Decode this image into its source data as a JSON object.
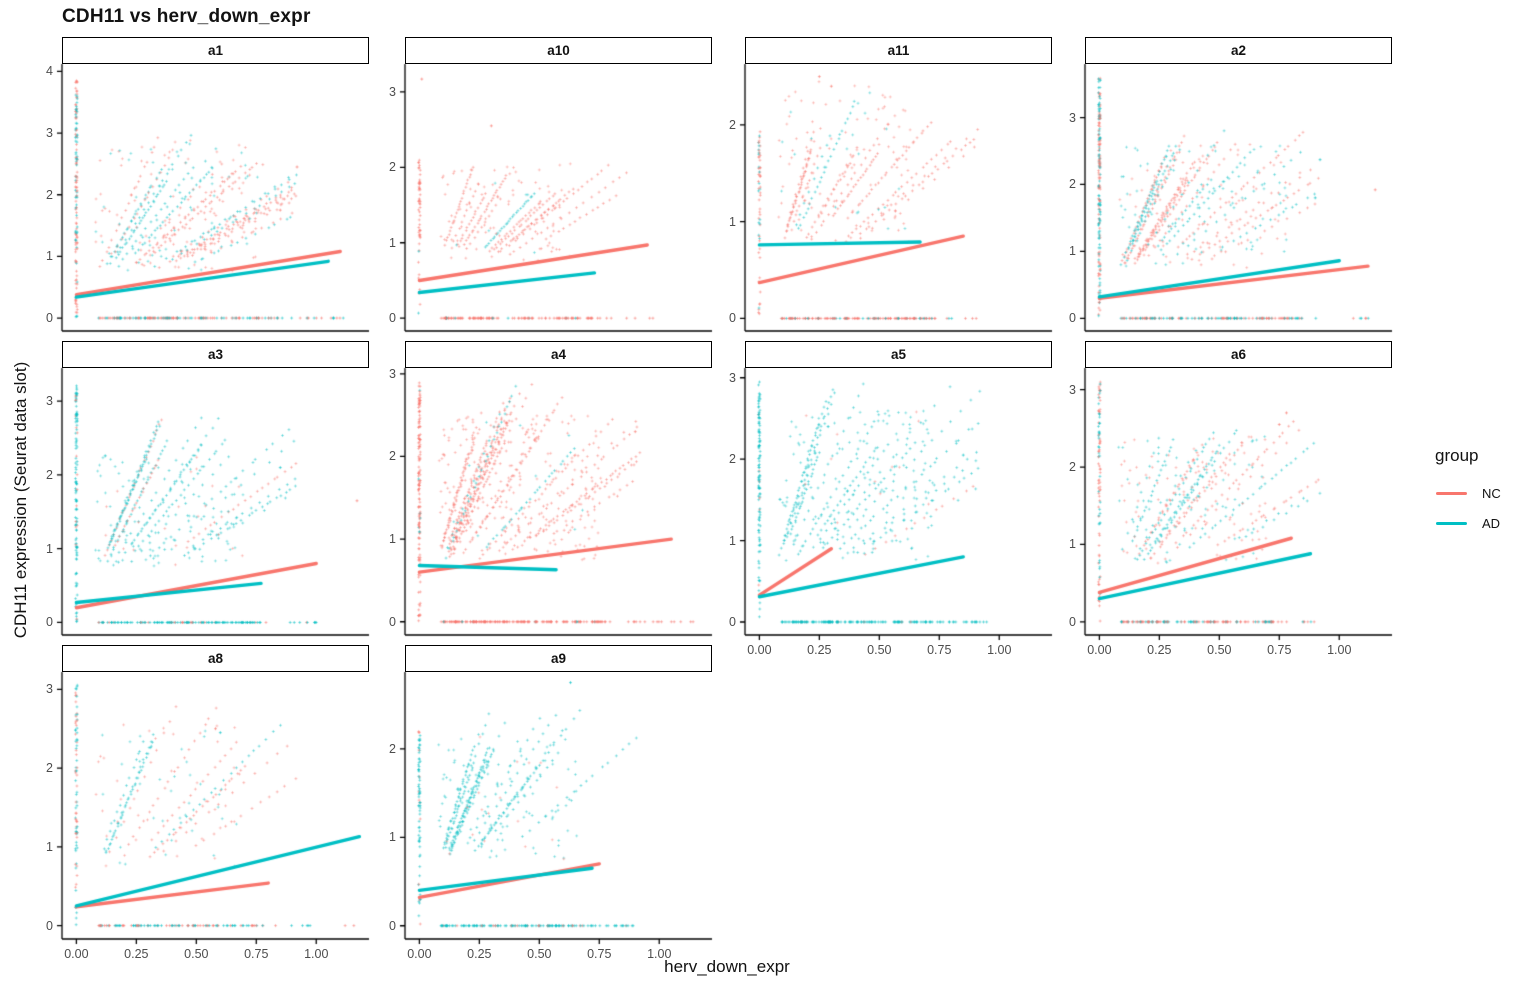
{
  "chart_data": {
    "type": "scatter",
    "title": "CDH11 vs herv_down_expr",
    "xlabel": "herv_down_expr",
    "ylabel": "CDH11 expression (Seurat data slot)",
    "legend_position": "right",
    "grid": false,
    "xlim": [
      -0.06,
      1.22
    ],
    "x_ticks": [
      0,
      0.25,
      0.5,
      0.75,
      1.0
    ],
    "x_tick_labels": [
      "0.00",
      "0.25",
      "0.50",
      "0.75",
      "1.00"
    ],
    "groups": [
      {
        "name": "NC",
        "color": "#F8766D"
      },
      {
        "name": "AD",
        "color": "#00BFC4"
      }
    ],
    "facets": [
      {
        "label": "a1",
        "row": 0,
        "col": 0,
        "y_ticks": [
          0,
          1,
          2,
          3,
          4
        ],
        "ylim": [
          -0.21,
          4.12
        ],
        "lines": {
          "NC": [
            0,
            0.38,
            1.1,
            1.08
          ],
          "AD": [
            0,
            0.34,
            1.05,
            0.92
          ]
        },
        "cloud": {
          "frac_nc": 0.62,
          "strip": 150,
          "zero": 160,
          "streaks": 26,
          "diffuse": 150,
          "strip_max": 3.85,
          "streak_max": 2.95,
          "diff_max": 2.9,
          "diff_x": 0.68,
          "zero_x": 0.85,
          "zero_far": 1.12
        },
        "extra": [
          [
            0.92,
            2.45,
            "NC"
          ],
          [
            0.85,
            1.75,
            "NC"
          ]
        ]
      },
      {
        "label": "a10",
        "row": 0,
        "col": 1,
        "y_ticks": [
          0,
          1,
          2,
          3
        ],
        "ylim": [
          -0.17,
          3.37
        ],
        "lines": {
          "NC": [
            0,
            0.5,
            0.95,
            0.97
          ],
          "AD": [
            0,
            0.34,
            0.73,
            0.6
          ]
        },
        "cloud": {
          "frac_nc": 0.93,
          "strip": 55,
          "zero": 120,
          "streaks": 13,
          "diffuse": 90,
          "strip_max": 2.1,
          "streak_max": 2.0,
          "diff_max": 2.05,
          "diff_x": 0.55,
          "zero_x": 0.72,
          "zero_far": 1.0
        },
        "extra": [
          [
            0.01,
            3.17,
            "NC"
          ],
          [
            0.3,
            2.55,
            "NC"
          ]
        ]
      },
      {
        "label": "a11",
        "row": 0,
        "col": 2,
        "y_ticks": [
          0,
          1,
          2
        ],
        "ylim": [
          -0.13,
          2.63
        ],
        "lines": {
          "NC": [
            0,
            0.37,
            0.85,
            0.85
          ],
          "AD": [
            0,
            0.76,
            0.67,
            0.79
          ]
        },
        "cloud": {
          "frac_nc": 0.72,
          "strip": 60,
          "zero": 140,
          "streaks": 15,
          "diffuse": 120,
          "strip_max": 2.0,
          "streak_max": 2.3,
          "diff_max": 2.45,
          "diff_x": 0.55,
          "zero_x": 0.72,
          "zero_far": 0.95
        },
        "extra": [
          [
            0.25,
            2.5,
            "NC"
          ],
          [
            0.3,
            2.4,
            "NC"
          ]
        ]
      },
      {
        "label": "a2",
        "row": 0,
        "col": 3,
        "y_ticks": [
          0,
          1,
          2,
          3
        ],
        "ylim": [
          -0.19,
          3.8
        ],
        "lines": {
          "NC": [
            0,
            0.3,
            1.12,
            0.78
          ],
          "AD": [
            0,
            0.32,
            1.0,
            0.86
          ]
        },
        "cloud": {
          "frac_nc": 0.5,
          "strip": 190,
          "zero": 150,
          "streaks": 22,
          "diffuse": 160,
          "strip_max": 3.6,
          "streak_max": 2.8,
          "diff_max": 2.6,
          "diff_x": 0.7,
          "zero_x": 0.85,
          "zero_far": 1.15
        },
        "extra": [
          [
            1.15,
            1.92,
            "NC"
          ],
          [
            0.92,
            2.37,
            "AD"
          ],
          [
            0.9,
            1.8,
            "AD"
          ]
        ]
      },
      {
        "label": "a3",
        "row": 1,
        "col": 0,
        "y_ticks": [
          0,
          1,
          2,
          3
        ],
        "ylim": [
          -0.17,
          3.45
        ],
        "lines": {
          "NC": [
            0,
            0.2,
            1.0,
            0.8
          ],
          "AD": [
            0,
            0.27,
            0.77,
            0.53
          ]
        },
        "cloud": {
          "frac_nc": 0.18,
          "strip": 120,
          "zero": 140,
          "streaks": 18,
          "diffuse": 120,
          "strip_max": 3.25,
          "streak_max": 2.8,
          "diff_max": 2.3,
          "diff_x": 0.62,
          "zero_x": 0.8,
          "zero_far": 1.0
        },
        "extra": [
          [
            1.17,
            1.65,
            "NC"
          ],
          [
            0.85,
            2.1,
            "AD"
          ]
        ]
      },
      {
        "label": "a4",
        "row": 1,
        "col": 1,
        "y_ticks": [
          0,
          1,
          2,
          3
        ],
        "ylim": [
          -0.16,
          3.07
        ],
        "lines": {
          "NC": [
            0,
            0.6,
            1.05,
            1.0
          ],
          "AD": [
            0,
            0.68,
            0.57,
            0.63
          ]
        },
        "cloud": {
          "frac_nc": 0.95,
          "strip": 140,
          "zero": 170,
          "streaks": 30,
          "diffuse": 240,
          "strip_max": 2.9,
          "streak_max": 2.8,
          "diff_max": 2.5,
          "diff_x": 0.68,
          "zero_x": 0.82,
          "zero_far": 1.15
        },
        "extra": [
          [
            0.9,
            2.3,
            "NC"
          ]
        ]
      },
      {
        "label": "a5",
        "row": 1,
        "col": 2,
        "y_ticks": [
          0,
          1,
          2,
          3
        ],
        "ylim": [
          -0.16,
          3.12
        ],
        "lines": {
          "NC": [
            0,
            0.33,
            0.3,
            0.9
          ],
          "AD": [
            0,
            0.31,
            0.85,
            0.8
          ]
        },
        "cloud": {
          "frac_nc": 0.06,
          "strip": 110,
          "zero": 150,
          "streaks": 20,
          "diffuse": 160,
          "strip_max": 2.95,
          "streak_max": 2.85,
          "diff_max": 2.6,
          "diff_x": 0.65,
          "zero_x": 0.8,
          "zero_far": 0.95
        },
        "extra": [
          [
            0.85,
            2.05,
            "AD"
          ]
        ]
      },
      {
        "label": "a6",
        "row": 1,
        "col": 3,
        "y_ticks": [
          0,
          1,
          2,
          3
        ],
        "ylim": [
          -0.17,
          3.28
        ],
        "lines": {
          "NC": [
            0,
            0.38,
            0.8,
            1.08
          ],
          "AD": [
            0,
            0.3,
            0.88,
            0.88
          ]
        },
        "cloud": {
          "frac_nc": 0.55,
          "strip": 100,
          "zero": 140,
          "streaks": 17,
          "diffuse": 160,
          "strip_max": 3.1,
          "streak_max": 2.6,
          "diff_max": 2.4,
          "diff_x": 0.62,
          "zero_x": 0.75,
          "zero_far": 0.9
        },
        "extra": [
          [
            0.78,
            2.7,
            "NC"
          ],
          [
            0.75,
            2.55,
            "NC"
          ]
        ]
      },
      {
        "label": "a8",
        "row": 2,
        "col": 0,
        "y_ticks": [
          0,
          1,
          2,
          3
        ],
        "ylim": [
          -0.17,
          3.22
        ],
        "lines": {
          "NC": [
            0,
            0.24,
            0.8,
            0.54
          ],
          "AD": [
            0,
            0.25,
            1.18,
            1.13
          ]
        },
        "cloud": {
          "frac_nc": 0.42,
          "strip": 85,
          "zero": 110,
          "streaks": 10,
          "diffuse": 75,
          "strip_max": 3.08,
          "streak_max": 2.75,
          "diff_max": 2.55,
          "diff_x": 0.6,
          "zero_x": 0.78,
          "zero_far": 1.2
        },
        "extra": [
          [
            0.6,
            2.45,
            "AD"
          ],
          [
            0.58,
            2.5,
            "NC"
          ]
        ]
      },
      {
        "label": "a9",
        "row": 2,
        "col": 1,
        "y_ticks": [
          0,
          1,
          2
        ],
        "ylim": [
          -0.15,
          2.87
        ],
        "lines": {
          "NC": [
            0,
            0.32,
            0.75,
            0.7
          ],
          "AD": [
            0,
            0.4,
            0.72,
            0.65
          ]
        },
        "cloud": {
          "frac_nc": 0.13,
          "strip": 75,
          "zero": 130,
          "streaks": 16,
          "diffuse": 120,
          "strip_max": 2.2,
          "streak_max": 2.5,
          "diff_max": 2.2,
          "diff_x": 0.58,
          "zero_x": 0.72,
          "zero_far": 0.9
        },
        "extra": [
          [
            0.63,
            2.75,
            "AD"
          ]
        ]
      }
    ]
  },
  "legend": {
    "title": "group",
    "items": [
      {
        "label": "NC",
        "color": "#F8766D"
      },
      {
        "label": "AD",
        "color": "#00BFC4"
      }
    ]
  },
  "style": {
    "axis_color": "#000000",
    "tick_text_color": "#4d4d4d",
    "strip_bg": "#ffffff",
    "point_alpha": 0.5
  }
}
